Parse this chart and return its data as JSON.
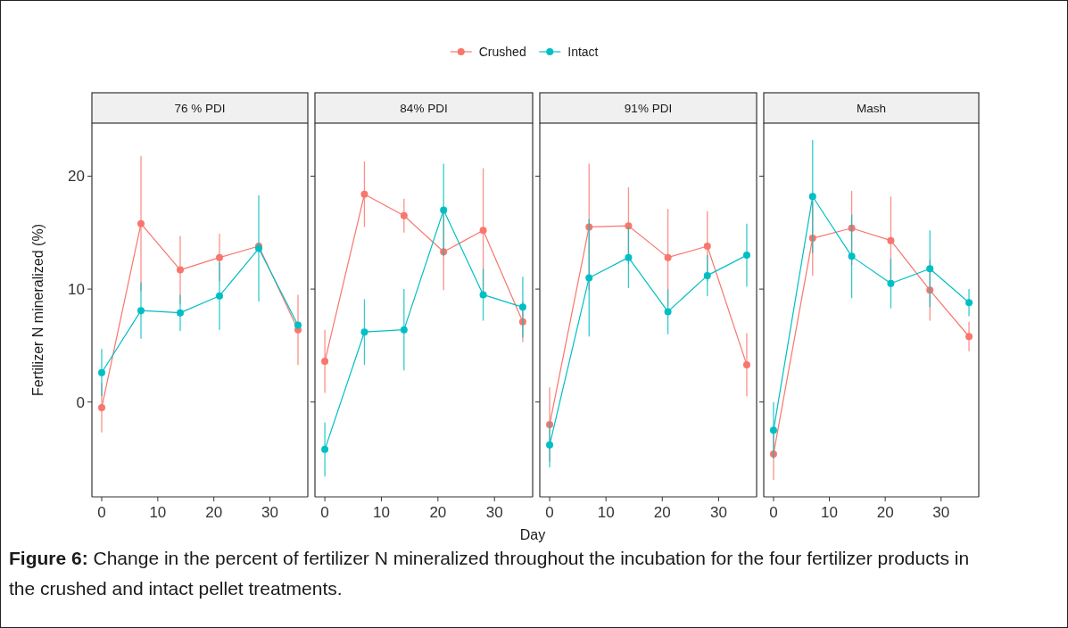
{
  "chart_data": [
    {
      "type": "line",
      "title": "76 % PDI",
      "ylabel": "Fertilizer N mineralized (%)",
      "legend": "top",
      "marker": "circle",
      "grid": false,
      "xlim": [
        -1.75,
        36.75
      ],
      "xticks": [
        0,
        10,
        20,
        30
      ],
      "ylim": [
        -8.4,
        24.7
      ],
      "yticks": [
        0,
        10,
        20
      ],
      "x": [
        0,
        7,
        14,
        21,
        28,
        35
      ],
      "annotations": [
        "Figure 6:",
        "Change in the percent of fertilizer N mineralized throughout the incubation for the four fertilizer products in the crushed and intact pellet treatments."
      ],
      "series": [
        {
          "name": "Crushed",
          "color": "#f8766d",
          "values": [
            -0.5,
            15.8,
            11.7,
            12.8,
            13.8,
            6.4
          ],
          "errors": [
            2.2,
            6,
            3,
            2.1,
            null,
            3.1
          ]
        },
        {
          "name": "Intact",
          "color": "#00bfc4",
          "values": [
            2.6,
            8.1,
            7.9,
            9.4,
            13.6,
            6.8
          ],
          "errors": [
            2.1,
            2.5,
            1.6,
            3,
            4.7,
            null
          ]
        }
      ]
    },
    {
      "type": "line",
      "title": "84% PDI",
      "xlabel": "Day",
      "tick_labels": "x",
      "marker": "circle",
      "grid": false,
      "xlim": [
        -1.75,
        36.75
      ],
      "xticks": [
        0,
        10,
        20,
        30
      ],
      "ylim": [
        -8.4,
        24.7
      ],
      "yticks": [
        0,
        10,
        20
      ],
      "x": [
        0,
        7,
        14,
        21,
        28,
        35
      ],
      "series": [
        {
          "color": "#f8766d",
          "values": [
            3.6,
            18.4,
            16.5,
            13.3,
            15.2,
            7.1
          ],
          "errors": [
            2.8,
            2.9,
            1.5,
            3.4,
            5.5,
            1.8
          ]
        },
        {
          "color": "#00bfc4",
          "values": [
            -4.2,
            6.2,
            6.4,
            17.0,
            9.5,
            8.4
          ],
          "errors": [
            2.4,
            2.9,
            3.6,
            4.1,
            2.3,
            2.7
          ]
        }
      ]
    },
    {
      "type": "line",
      "title": "91% PDI",
      "tick_labels": "x",
      "marker": "circle",
      "grid": false,
      "xlim": [
        -1.75,
        36.75
      ],
      "xticks": [
        0,
        10,
        20,
        30
      ],
      "ylim": [
        -8.4,
        24.7
      ],
      "yticks": [
        0,
        10,
        20
      ],
      "x": [
        0,
        7,
        14,
        21,
        28,
        35
      ],
      "series": [
        {
          "color": "#f8766d",
          "values": [
            -2.0,
            15.5,
            15.6,
            12.8,
            13.8,
            3.3
          ],
          "errors": [
            3.3,
            5.6,
            3.4,
            4.3,
            3.1,
            2.8
          ]
        },
        {
          "color": "#00bfc4",
          "values": [
            -3.8,
            11.0,
            12.8,
            8.0,
            11.2,
            13.0
          ],
          "errors": [
            2,
            5.2,
            2.7,
            2,
            1.8,
            2.8
          ]
        }
      ]
    },
    {
      "type": "line",
      "title": "Mash",
      "tick_labels": "x",
      "marker": "circle",
      "grid": false,
      "xlim": [
        -1.75,
        36.75
      ],
      "xticks": [
        0,
        10,
        20,
        30
      ],
      "ylim": [
        -8.4,
        24.7
      ],
      "yticks": [
        0,
        10,
        20
      ],
      "x": [
        0,
        7,
        14,
        21,
        28,
        35
      ],
      "series": [
        {
          "color": "#f8766d",
          "values": [
            -4.6,
            14.5,
            15.4,
            14.3,
            9.9,
            5.8
          ],
          "errors": [
            2.3,
            3.3,
            3.3,
            3.9,
            2.7,
            1.3
          ]
        },
        {
          "color": "#00bfc4",
          "values": [
            -2.5,
            18.2,
            12.9,
            10.5,
            11.8,
            8.8
          ],
          "errors": [
            2.5,
            5,
            3.7,
            2.2,
            3.4,
            1.2
          ]
        }
      ]
    }
  ]
}
